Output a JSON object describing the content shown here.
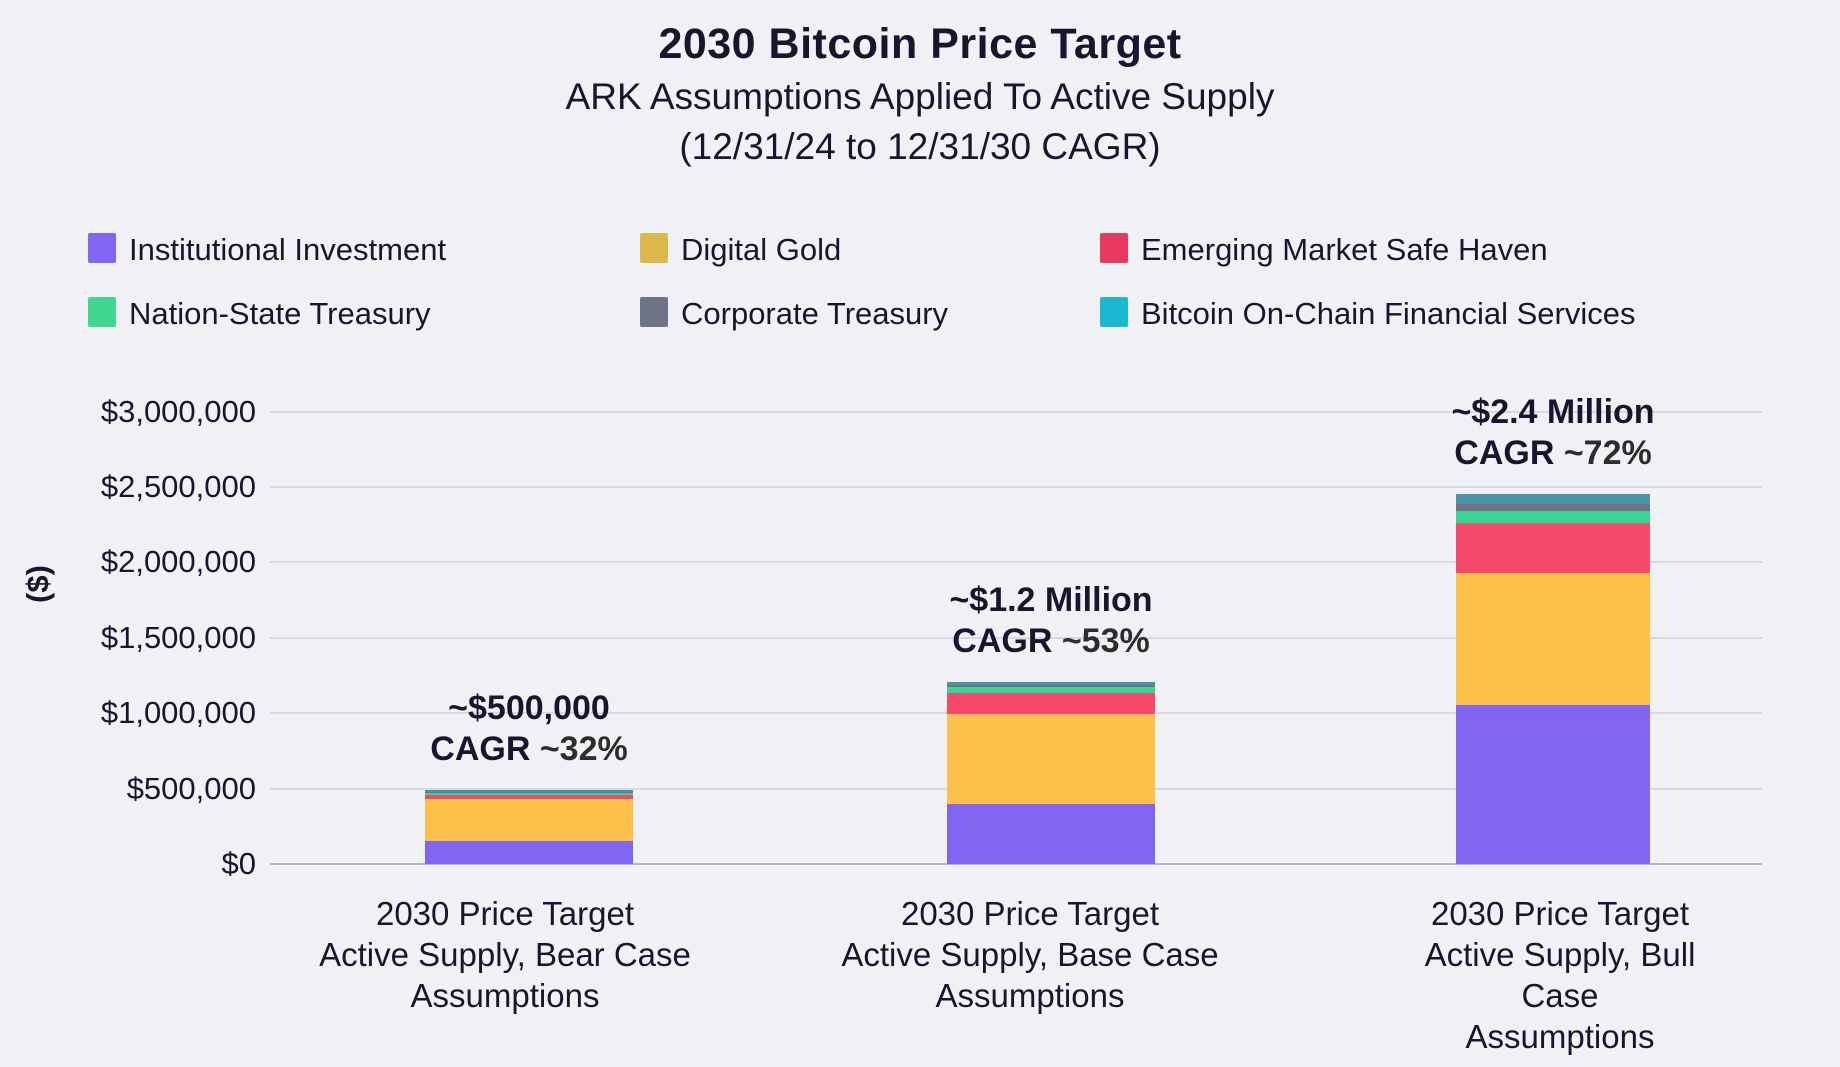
{
  "header": {
    "title": "2030 Bitcoin Price Target",
    "subtitle_line1": "ARK Assumptions Applied To Active Supply",
    "subtitle_line2": "(12/31/24 to 12/31/30 CAGR)"
  },
  "legend": {
    "items": [
      {
        "label": "Institutional Investment",
        "color": "#8166f4"
      },
      {
        "label": "Digital Gold",
        "color": "#ddb84a"
      },
      {
        "label": "Emerging Market Safe Haven",
        "color": "#e8395f"
      },
      {
        "label": "Nation-State Treasury",
        "color": "#3fd68f"
      },
      {
        "label": "Corporate Treasury",
        "color": "#6e7487"
      },
      {
        "label": "Bitcoin On-Chain Financial Services",
        "color": "#1cb8d2"
      }
    ]
  },
  "chart_data": {
    "type": "bar",
    "stacked": true,
    "title": "2030 Bitcoin Price Target",
    "subtitle": "ARK Assumptions Applied To Active Supply (12/31/24 to 12/31/30 CAGR)",
    "ylabel": "($)",
    "xlabel": "",
    "ylim": [
      0,
      3000000
    ],
    "grid": true,
    "legend_position": "top",
    "ytick_labels": [
      "$0",
      "$500,000",
      "$1,000,000",
      "$1,500,000",
      "$2,000,000",
      "$2,500,000",
      "$3,000,000"
    ],
    "categories": [
      [
        "2030 Price Target",
        "Active Supply, Bear Case",
        "Assumptions"
      ],
      [
        "2030 Price Target",
        "Active Supply, Base Case",
        "Assumptions"
      ],
      [
        "2030 Price Target",
        "Active Supply, Bull Case",
        "Assumptions"
      ]
    ],
    "series": [
      {
        "name": "Institutional Investment",
        "color": "#8166f4",
        "values": [
          155000,
          400000,
          1055000
        ]
      },
      {
        "name": "Digital Gold",
        "color": "#fdc04a",
        "values": [
          275000,
          595000,
          873000
        ]
      },
      {
        "name": "Emerging Market Safe Haven",
        "color": "#f4496b",
        "values": [
          29000,
          136000,
          331000
        ]
      },
      {
        "name": "Nation-State Treasury",
        "color": "#37d694",
        "values": [
          10000,
          42000,
          85000
        ]
      },
      {
        "name": "Corporate Treasury",
        "color": "#6e7385",
        "values": [
          8000,
          13000,
          44000
        ]
      },
      {
        "name": "Bitcoin On-Chain Financial Services",
        "color": "#4a93a8",
        "values": [
          14000,
          20000,
          63000
        ]
      }
    ],
    "totals_approx": [
      "~$500,000",
      "~$1.2 Million",
      "~$2.4 Million"
    ],
    "annotations": [
      {
        "total_label": "~$500,000",
        "cagr_prefix": "CAGR",
        "cagr_value": "~32%"
      },
      {
        "total_label": "~$1.2 Million",
        "cagr_prefix": "CAGR",
        "cagr_value": "~53%"
      },
      {
        "total_label": "~$2.4 Million",
        "cagr_prefix": "CAGR",
        "cagr_value": "~72%"
      }
    ]
  }
}
